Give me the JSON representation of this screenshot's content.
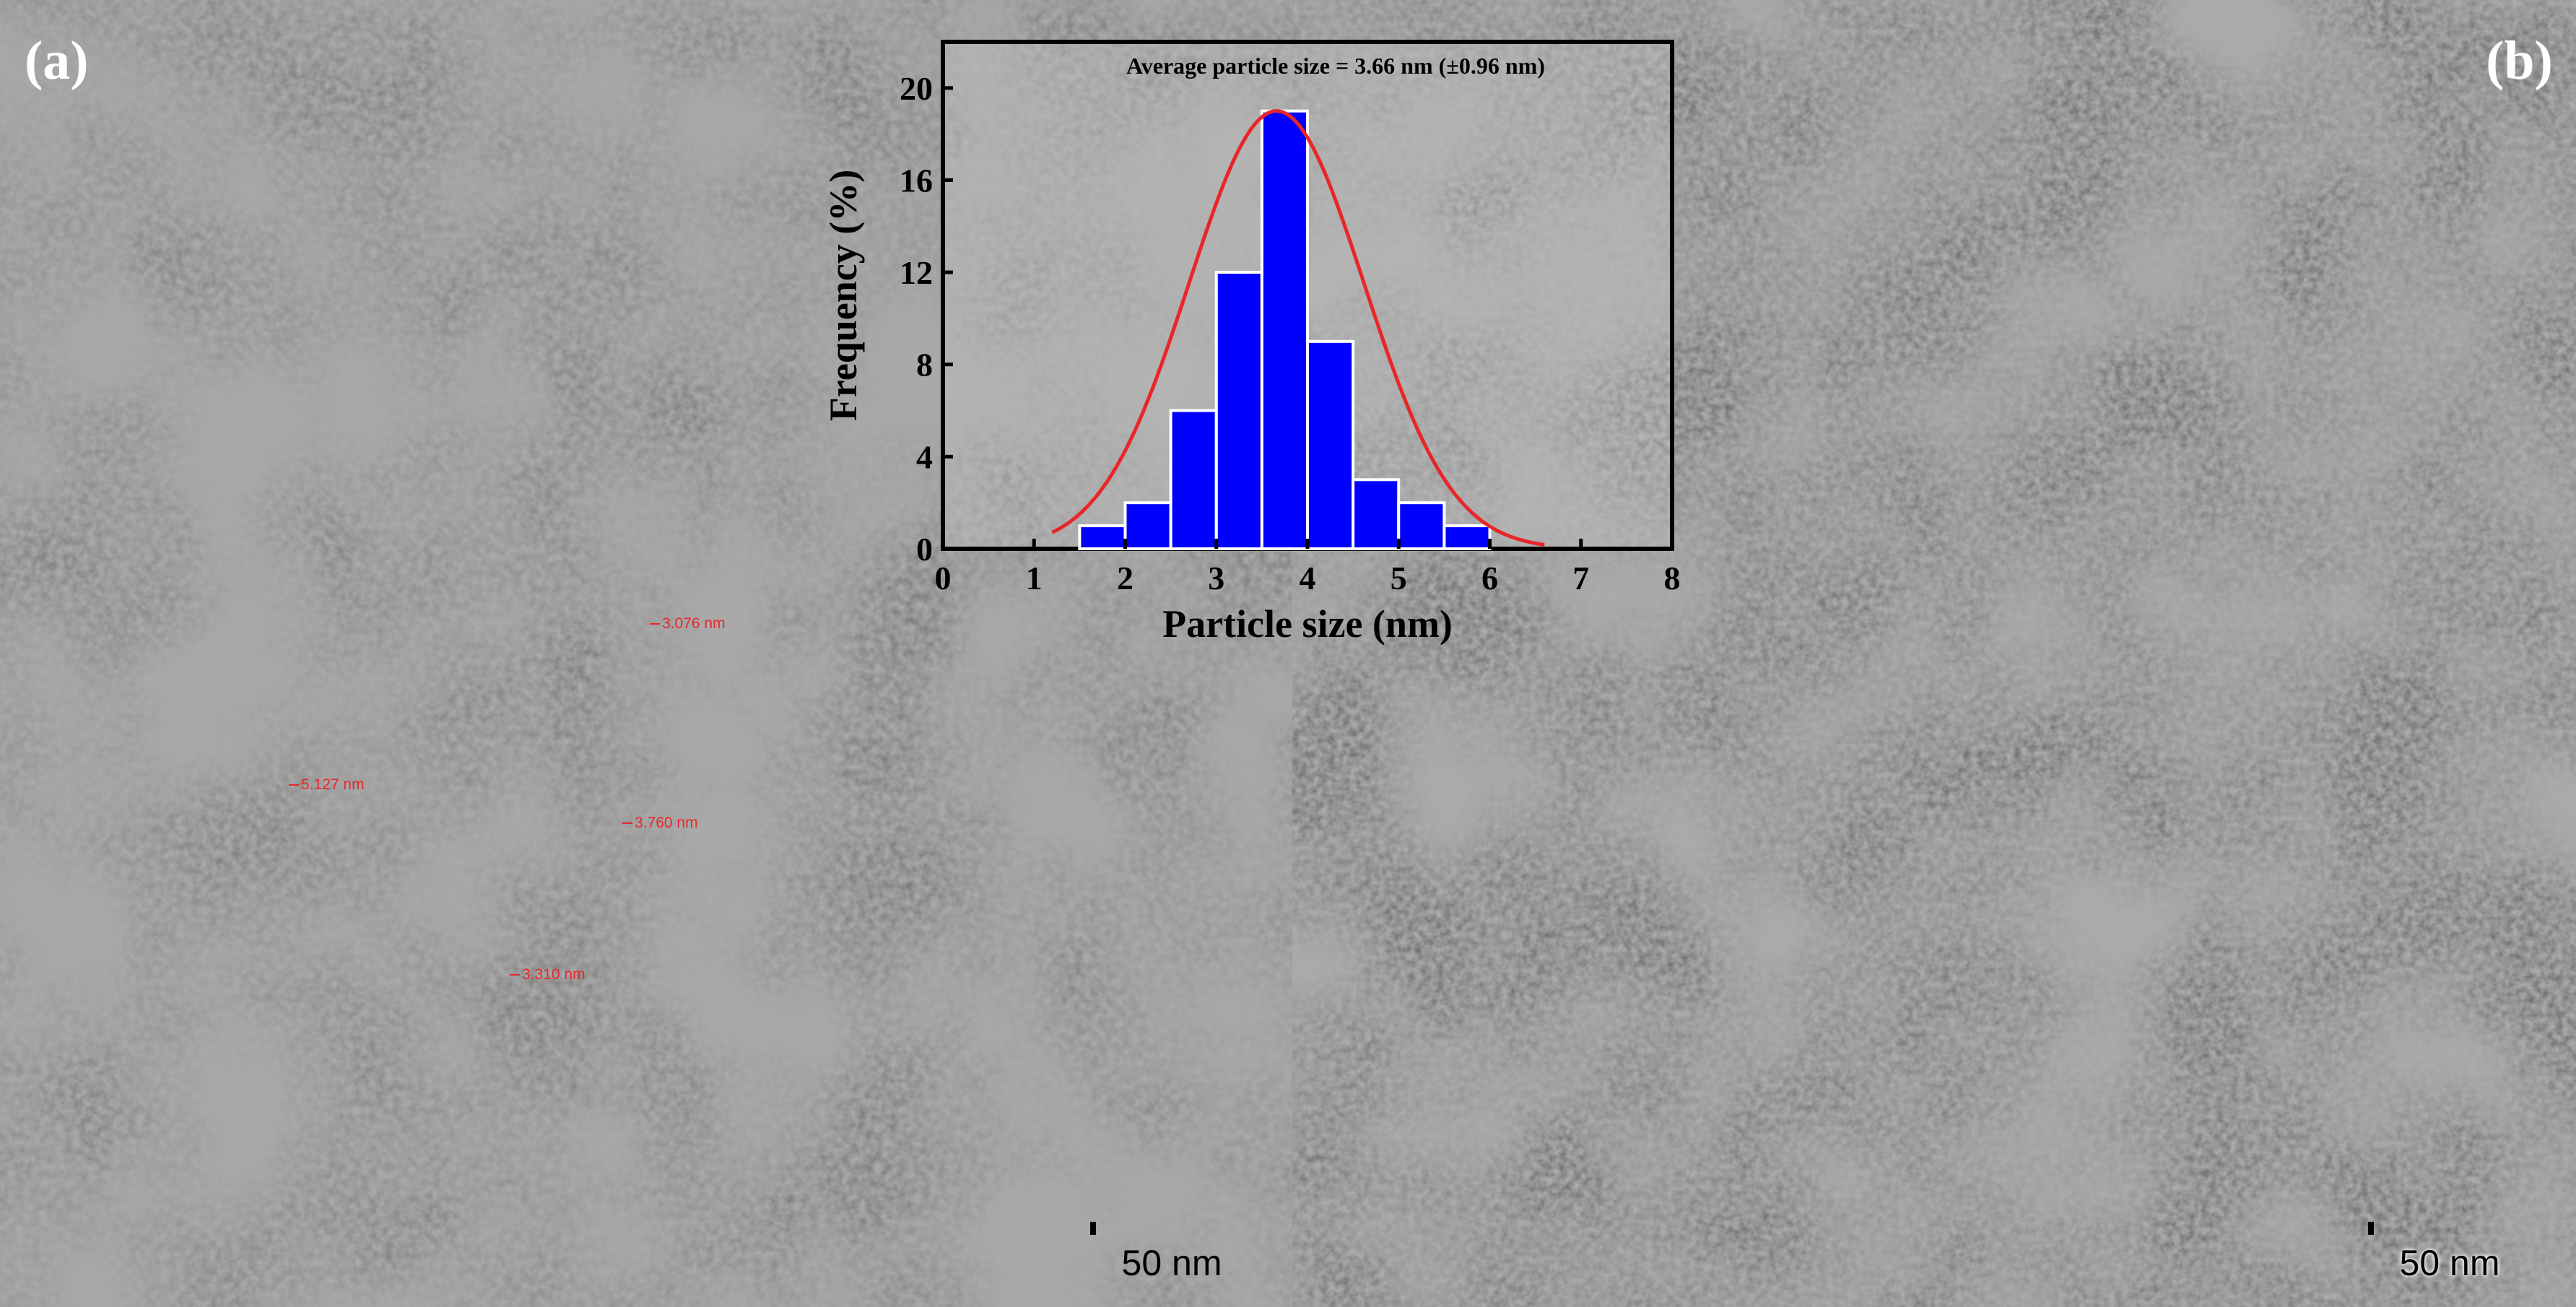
{
  "panels": [
    {
      "label": "(a)",
      "scalebar": "50 nm"
    },
    {
      "label": "(b)",
      "scalebar": "50 nm"
    }
  ],
  "measurements": [
    "3.076 nm",
    "5.127 nm",
    "3.760 nm",
    "3.310 nm"
  ],
  "chart_data": {
    "type": "bar",
    "title": "Average particle size = 3.66 nm (±0.96 nm)",
    "xlabel": "Particle size (nm)",
    "ylabel": "Frequency (%)",
    "xlim": [
      0,
      8
    ],
    "ylim": [
      0,
      22
    ],
    "xticks": [
      0,
      1,
      2,
      3,
      4,
      5,
      6,
      7,
      8
    ],
    "yticks": [
      0,
      4,
      8,
      12,
      16,
      20
    ],
    "bin_width": 0.5,
    "bins": [
      {
        "x": 1.75,
        "y": 1
      },
      {
        "x": 2.25,
        "y": 2
      },
      {
        "x": 2.75,
        "y": 6
      },
      {
        "x": 3.25,
        "y": 12
      },
      {
        "x": 3.75,
        "y": 19
      },
      {
        "x": 4.25,
        "y": 9
      },
      {
        "x": 4.75,
        "y": 3
      },
      {
        "x": 5.25,
        "y": 2
      },
      {
        "x": 5.75,
        "y": 1
      }
    ],
    "fit": {
      "type": "gaussian",
      "mean": 3.66,
      "sigma": 0.96,
      "peak": 19
    },
    "colors": {
      "bar": "#0000ff",
      "bar_edge": "#ffffff",
      "fit": "#e8262a"
    }
  }
}
